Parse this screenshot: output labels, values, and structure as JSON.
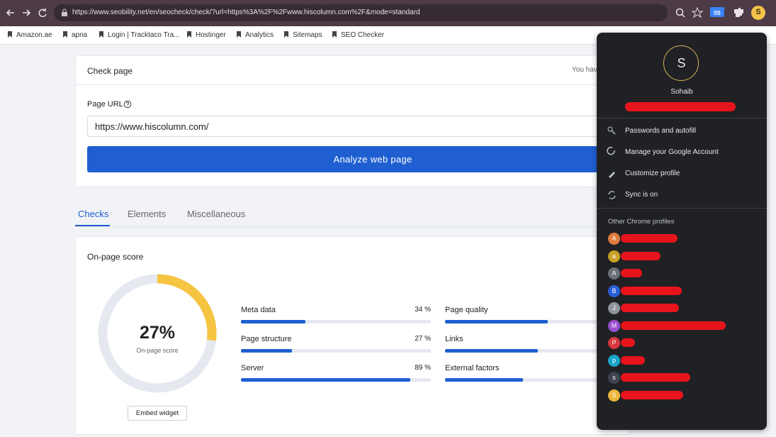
{
  "browser": {
    "url": "https://www.seobility.net/en/seocheck/check/?url=https%3A%2F%2Fwww.hiscolumn.com%2F&mode=standard",
    "extension_badge": "0S",
    "avatar": "S"
  },
  "bookmarks": [
    "Amazon.ae",
    "apna",
    "Login | Tracktaco Tra...",
    "Hostinger",
    "Analytics",
    "Sitemaps",
    "SEO Checker"
  ],
  "check_page": {
    "title": "Check page",
    "note": "You hav",
    "url_label": "Page URL",
    "url_value": "https://www.hiscolumn.com/",
    "button": "Analyze web page"
  },
  "tabs": [
    "Checks",
    "Elements",
    "Miscellaneous"
  ],
  "score": {
    "title": "On-page score",
    "value": 27,
    "label": "27%",
    "caption": "On-page score",
    "embed": "Embed widget"
  },
  "metrics": [
    {
      "name": "Meta data",
      "value": 34,
      "label": "34 %"
    },
    {
      "name": "Page structure",
      "value": 27,
      "label": "27 %"
    },
    {
      "name": "Server",
      "value": 89,
      "label": "89 %"
    },
    {
      "name": "Page quality",
      "value": 54
    },
    {
      "name": "Links",
      "value": 49
    },
    {
      "name": "External factors",
      "value": 41
    }
  ],
  "profile_menu": {
    "avatar": "S",
    "name": "Sohaib",
    "items": [
      "Passwords and autofill",
      "Manage your Google Account",
      "Customize profile",
      "Sync is on"
    ],
    "other_title": "Other Chrome profiles",
    "profiles": [
      {
        "initial": "A",
        "color": "#e07b3c"
      },
      {
        "initial": "a",
        "color": "#c9a227"
      },
      {
        "initial": "A",
        "color": "#6b7078"
      },
      {
        "initial": "B",
        "color": "#2a5fd8"
      },
      {
        "initial": "J",
        "color": "#8f949a"
      },
      {
        "initial": "M",
        "color": "#9a4fd0"
      },
      {
        "initial": "P",
        "color": "#d9363e"
      },
      {
        "initial": "p",
        "color": "#18a6c8"
      },
      {
        "initial": "s",
        "color": "#3e4350"
      },
      {
        "initial": "S",
        "color": "#eeb63a"
      }
    ]
  }
}
